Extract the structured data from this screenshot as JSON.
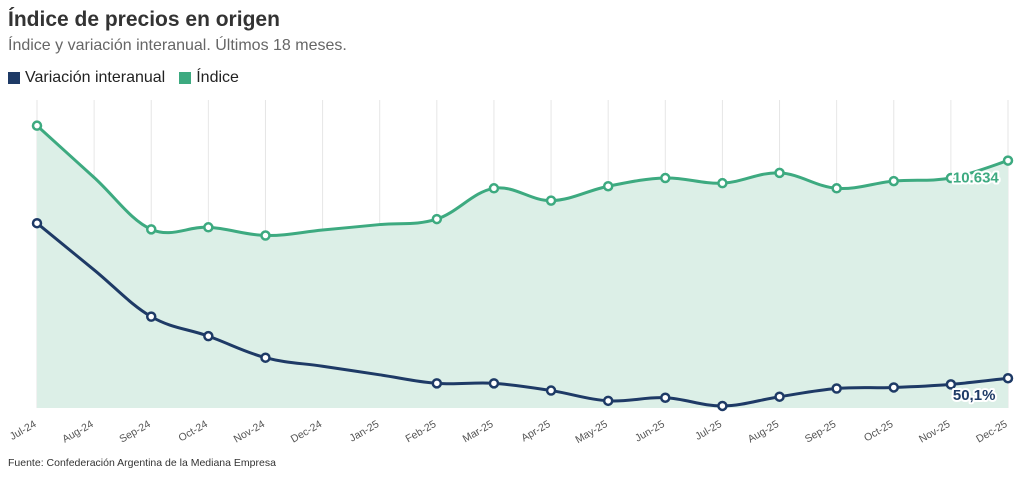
{
  "header": {
    "title": "Índice de precios en origen",
    "subtitle": "Índice y variación interanual. Últimos 18 meses."
  },
  "legend": [
    {
      "label": "Variación interanual",
      "color": "#1e3a66"
    },
    {
      "label": "Índice",
      "color": "#3daa80"
    }
  ],
  "footer": {
    "source": "Fuente: Confederación Argentina de la Mediana Empresa"
  },
  "chart_data": {
    "type": "line",
    "categories": [
      "Jul-24",
      "Aug-24",
      "Sep-24",
      "Oct-24",
      "Nov-24",
      "Dec-24",
      "Jan-25",
      "Feb-25",
      "Mar-25",
      "Apr-25",
      "May-25",
      "Jun-25",
      "Jul-25",
      "Aug-25",
      "Sep-25",
      "Oct-25",
      "Nov-25",
      "Dec-25"
    ],
    "ylim": [
      0,
      300
    ],
    "grid": "vertical",
    "legend_position": "top-left",
    "series": [
      {
        "name": "Índice",
        "color": "#3daa80",
        "area": true,
        "area_color": "#dcefe7",
        "values": [
          275,
          null,
          174,
          176,
          168,
          null,
          null,
          184,
          214,
          202,
          216,
          224,
          219,
          229,
          214,
          221,
          224,
          241
        ],
        "end_label": "10.634"
      },
      {
        "name": "Variación interanual",
        "color": "#1e3a66",
        "area": false,
        "values": [
          180,
          null,
          89,
          70,
          49,
          null,
          null,
          24,
          24,
          17,
          7,
          10,
          2,
          11,
          19,
          20,
          23,
          29
        ],
        "end_label": "50,1%"
      }
    ]
  }
}
